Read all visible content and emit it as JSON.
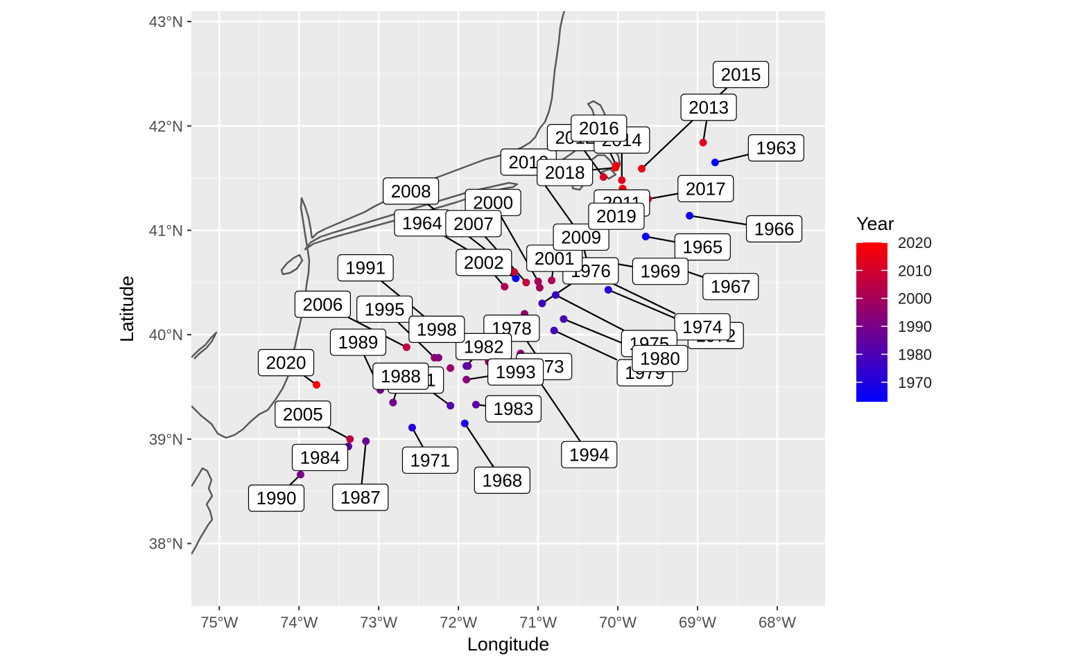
{
  "chart_data": {
    "type": "scatter",
    "xlabel": "Longitude",
    "ylabel": "Latitude",
    "xlim": [
      -75.35,
      -67.4
    ],
    "ylim": [
      37.4,
      43.1
    ],
    "x_ticks": [
      -75,
      -74,
      -73,
      -72,
      -71,
      -70,
      -69,
      -68
    ],
    "x_tick_labels": [
      "75°W",
      "74°W",
      "73°W",
      "72°W",
      "71°W",
      "70°W",
      "69°W",
      "68°W"
    ],
    "y_ticks": [
      38,
      39,
      40,
      41,
      42,
      43
    ],
    "y_tick_labels": [
      "38°N",
      "39°N",
      "40°N",
      "41°N",
      "42°N",
      "43°N"
    ],
    "grid": true,
    "background": "#ebebeb",
    "coastline_color": "#555555",
    "legend": {
      "title": "Year",
      "position": "right",
      "min": 1963,
      "max": 2020,
      "ticks": [
        1970,
        1980,
        1990,
        2000,
        2010,
        2020
      ],
      "tick_labels": [
        "1970",
        "1980",
        "1990",
        "2000",
        "2010",
        "2020"
      ],
      "color_low": "#0000ff",
      "color_high": "#ff0000"
    },
    "points": [
      {
        "year": 1963,
        "lon": -68.78,
        "lat": 41.65,
        "label": "1963"
      },
      {
        "year": 1964,
        "lon": -71.28,
        "lat": 40.54,
        "label": "1964"
      },
      {
        "year": 1965,
        "lon": -69.65,
        "lat": 40.94,
        "label": "1965"
      },
      {
        "year": 1966,
        "lon": -69.1,
        "lat": 41.14,
        "label": "1966"
      },
      {
        "year": 1967,
        "lon": -69.42,
        "lat": 40.68,
        "label": "1967"
      },
      {
        "year": 1968,
        "lon": -71.92,
        "lat": 39.15,
        "label": "1968"
      },
      {
        "year": 1969,
        "lon": -70.18,
        "lat": 40.7,
        "label": "1969"
      },
      {
        "year": 1971,
        "lon": -72.58,
        "lat": 39.11,
        "label": "1971"
      },
      {
        "year": 1972,
        "lon": -70.12,
        "lat": 40.43,
        "label": "1972"
      },
      {
        "year": 1973,
        "lon": -71.23,
        "lat": 40.04,
        "label": "1973"
      },
      {
        "year": 1974,
        "lon": -70.2,
        "lat": 40.54,
        "label": "1974"
      },
      {
        "year": 1975,
        "lon": -70.78,
        "lat": 40.38,
        "label": "1975"
      },
      {
        "year": 1976,
        "lon": -70.95,
        "lat": 40.3,
        "label": "1976"
      },
      {
        "year": 1978,
        "lon": -71.42,
        "lat": 39.75,
        "label": "1978"
      },
      {
        "year": 1979,
        "lon": -70.8,
        "lat": 40.04,
        "label": "1979"
      },
      {
        "year": 1980,
        "lon": -70.68,
        "lat": 40.15,
        "label": "1980"
      },
      {
        "year": 1981,
        "lon": -72.1,
        "lat": 39.32,
        "label": "1981"
      },
      {
        "year": 1982,
        "lon": -71.9,
        "lat": 39.7,
        "label": "1982"
      },
      {
        "year": 1983,
        "lon": -71.78,
        "lat": 39.33,
        "label": "1983"
      },
      {
        "year": 1984,
        "lon": -73.38,
        "lat": 38.93,
        "label": "1984"
      },
      {
        "year": 1987,
        "lon": -73.16,
        "lat": 38.98,
        "label": "1987"
      },
      {
        "year": 1988,
        "lon": -72.82,
        "lat": 39.35,
        "label": "1988"
      },
      {
        "year": 1989,
        "lon": -72.98,
        "lat": 39.47,
        "label": "1989"
      },
      {
        "year": 1990,
        "lon": -73.98,
        "lat": 38.66,
        "label": "1990"
      },
      {
        "year": 1991,
        "lon": -72.2,
        "lat": 40.03,
        "label": "1991"
      },
      {
        "year": 1993,
        "lon": -71.9,
        "lat": 39.57,
        "label": "1993"
      },
      {
        "year": 1994,
        "lon": -71.22,
        "lat": 39.82,
        "label": "1994"
      },
      {
        "year": 1995,
        "lon": -72.3,
        "lat": 39.78,
        "label": "1995"
      },
      {
        "year": 1998,
        "lon": -71.62,
        "lat": 39.74,
        "label": "1998"
      },
      {
        "year": 2000,
        "lon": -71.0,
        "lat": 40.51,
        "label": "2000"
      },
      {
        "year": 2001,
        "lon": -70.83,
        "lat": 40.52,
        "label": "2001"
      },
      {
        "year": 2002,
        "lon": -71.42,
        "lat": 40.46,
        "label": "2002"
      },
      {
        "year": 2005,
        "lon": -73.36,
        "lat": 39.0,
        "label": "2005"
      },
      {
        "year": 2006,
        "lon": -72.65,
        "lat": 39.88,
        "label": "2006"
      },
      {
        "year": 2007,
        "lon": -71.15,
        "lat": 40.5,
        "label": "2007"
      },
      {
        "year": 2008,
        "lon": -71.3,
        "lat": 40.6,
        "label": "2008"
      },
      {
        "year": 2009,
        "lon": -70.33,
        "lat": 40.53,
        "label": "2009"
      },
      {
        "year": 2010,
        "lon": -70.52,
        "lat": 41.01,
        "label": "2010"
      },
      {
        "year": 2011,
        "lon": -70.35,
        "lat": 41.01,
        "label": "2011"
      },
      {
        "year": 2012,
        "lon": -70.18,
        "lat": 41.51,
        "label": "2012"
      },
      {
        "year": 2013,
        "lon": -68.93,
        "lat": 41.84,
        "label": "2013"
      },
      {
        "year": 2014,
        "lon": -69.95,
        "lat": 41.48,
        "label": "2014"
      },
      {
        "year": 2015,
        "lon": -69.7,
        "lat": 41.59,
        "label": "2015"
      },
      {
        "year": 2016,
        "lon": -70.02,
        "lat": 41.62,
        "label": "2016"
      },
      {
        "year": 2017,
        "lon": -69.62,
        "lat": 41.3,
        "label": "2017"
      },
      {
        "year": 2018,
        "lon": -70.03,
        "lat": 41.6,
        "label": "2018"
      },
      {
        "year": 2019,
        "lon": -69.94,
        "lat": 41.4,
        "label": "2019"
      },
      {
        "year": 2020,
        "lon": -73.78,
        "lat": 39.52,
        "label": "2020"
      },
      {
        "year": 1992,
        "lon": -72.25,
        "lat": 39.78,
        "label": ""
      },
      {
        "year": 1985,
        "lon": -71.88,
        "lat": 39.7,
        "label": ""
      },
      {
        "year": 1997,
        "lon": -72.1,
        "lat": 39.68,
        "label": ""
      },
      {
        "year": 1996,
        "lon": -71.17,
        "lat": 40.2,
        "label": ""
      },
      {
        "year": 1999,
        "lon": -70.98,
        "lat": 40.45,
        "label": ""
      },
      {
        "year": 1977,
        "lon": -71.23,
        "lat": 40.02,
        "label": ""
      },
      {
        "year": 1986,
        "lon": -72.0,
        "lat": 40.02,
        "label": ""
      }
    ]
  }
}
